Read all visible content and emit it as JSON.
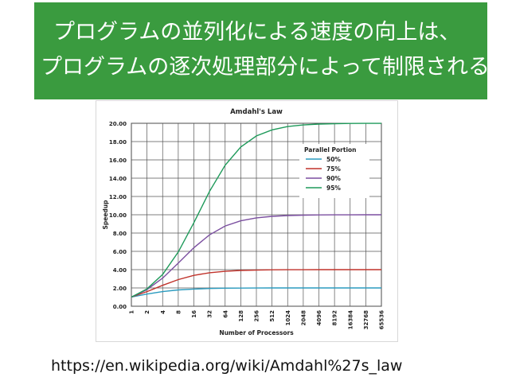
{
  "banner": {
    "line1": "プログラムの並列化による速度の向上は、",
    "line2": "プログラムの逐次処理部分によって制限される",
    "color": "#3a9b3f"
  },
  "footer": {
    "url": "https://en.wikipedia.org/wiki/Amdahl%27s_law"
  },
  "chart_data": {
    "type": "line",
    "title": "Amdahl's Law",
    "xlabel": "Number of Processors",
    "ylabel": "Speedup",
    "x_scale": "log2",
    "x": [
      "1",
      "2",
      "4",
      "8",
      "16",
      "32",
      "64",
      "128",
      "256",
      "512",
      "1024",
      "2048",
      "4096",
      "8192",
      "16384",
      "32768",
      "65536"
    ],
    "y_ticks": [
      "0.00",
      "2.00",
      "4.00",
      "6.00",
      "8.00",
      "10.00",
      "12.00",
      "14.00",
      "16.00",
      "18.00",
      "20.00"
    ],
    "ylim": [
      0,
      20
    ],
    "grid": true,
    "legend_title": "Parallel Portion",
    "legend_position": "top-right",
    "series": [
      {
        "name": "50%",
        "color": "#2a9bbf",
        "values": [
          1.0,
          1.33,
          1.6,
          1.78,
          1.88,
          1.94,
          1.97,
          1.98,
          1.99,
          2.0,
          2.0,
          2.0,
          2.0,
          2.0,
          2.0,
          2.0,
          2.0
        ]
      },
      {
        "name": "75%",
        "color": "#c0322a",
        "values": [
          1.0,
          1.6,
          2.29,
          2.91,
          3.37,
          3.66,
          3.82,
          3.91,
          3.95,
          3.98,
          3.99,
          3.99,
          4.0,
          4.0,
          4.0,
          4.0,
          4.0
        ]
      },
      {
        "name": "90%",
        "color": "#7b4fa0",
        "values": [
          1.0,
          1.82,
          3.08,
          4.71,
          6.4,
          7.8,
          8.77,
          9.34,
          9.66,
          9.83,
          9.91,
          9.96,
          9.98,
          9.99,
          9.99,
          10.0,
          10.0
        ]
      },
      {
        "name": "95%",
        "color": "#1e9a5a",
        "values": [
          1.0,
          1.9,
          3.48,
          5.93,
          9.14,
          12.55,
          15.42,
          17.41,
          18.62,
          19.28,
          19.64,
          19.82,
          19.91,
          19.95,
          19.98,
          19.99,
          19.99
        ]
      }
    ]
  }
}
